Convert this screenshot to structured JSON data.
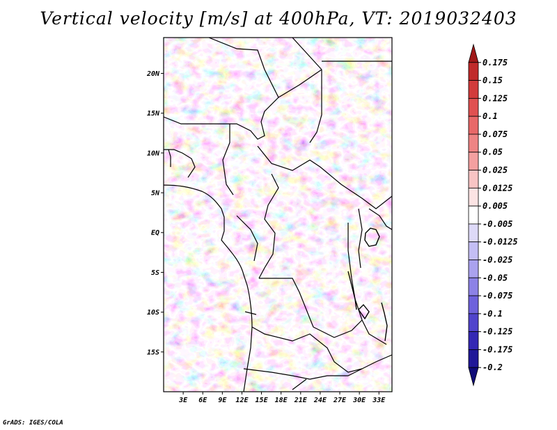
{
  "title": "Vertical velocity [m/s] at 400hPa, VT: 2019032403",
  "credit": "GrADS: IGES/COLA",
  "map": {
    "region": "Central Africa",
    "variable": "vertical velocity",
    "units": "m/s",
    "level": "400hPa",
    "valid_time": "2019032403",
    "lon_range": [
      0,
      35
    ],
    "lat_range": [
      -20,
      24.5
    ],
    "lat_ticks": [
      {
        "value": 20,
        "label": "20N"
      },
      {
        "value": 15,
        "label": "15N"
      },
      {
        "value": 10,
        "label": "10N"
      },
      {
        "value": 5,
        "label": "5N"
      },
      {
        "value": 0,
        "label": "EQ"
      },
      {
        "value": -5,
        "label": "5S"
      },
      {
        "value": -10,
        "label": "10S"
      },
      {
        "value": -15,
        "label": "15S"
      }
    ],
    "lon_ticks": [
      {
        "value": 3,
        "label": "3E"
      },
      {
        "value": 6,
        "label": "6E"
      },
      {
        "value": 9,
        "label": "9E"
      },
      {
        "value": 12,
        "label": "12E"
      },
      {
        "value": 15,
        "label": "15E"
      },
      {
        "value": 18,
        "label": "18E"
      },
      {
        "value": 21,
        "label": "21E"
      },
      {
        "value": 24,
        "label": "24E"
      },
      {
        "value": 27,
        "label": "27E"
      },
      {
        "value": 30,
        "label": "30E"
      },
      {
        "value": 33,
        "label": "33E"
      }
    ]
  },
  "colorbar": {
    "labels": [
      "0.175",
      "0.15",
      "0.125",
      "0.1",
      "0.075",
      "0.05",
      "0.025",
      "0.0125",
      "0.005",
      "-0.005",
      "-0.0125",
      "-0.025",
      "-0.05",
      "-0.075",
      "-0.1",
      "-0.125",
      "-0.175",
      "-0.2"
    ],
    "colors": [
      "#a01818",
      "#c02a2a",
      "#d23c3c",
      "#e05050",
      "#e86868",
      "#ee8484",
      "#f4a0a0",
      "#f8c4c4",
      "#fce4e4",
      "#ffffff",
      "#dedaf8",
      "#c4bef4",
      "#aaa2ee",
      "#8c82e6",
      "#6e62dc",
      "#5044cc",
      "#3428b4",
      "#201898",
      "#100c78"
    ]
  }
}
